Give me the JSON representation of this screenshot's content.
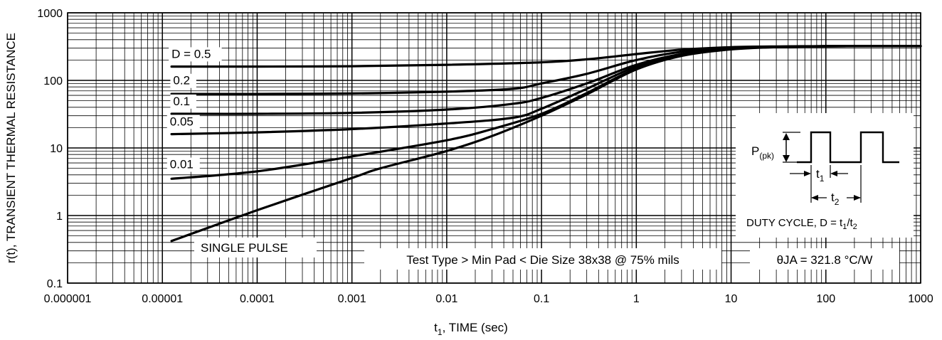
{
  "chart_data": {
    "type": "line",
    "xlabel_main": "t",
    "xlabel_sub": "1",
    "xlabel_rest": ", TIME (sec)",
    "ylabel": "r(t), TRANSIENT THERMAL RESISTANCE",
    "xscale": "log",
    "yscale": "log",
    "xlim": [
      1e-06,
      1000
    ],
    "ylim": [
      0.1,
      1000
    ],
    "grid": true,
    "x_ticks": [
      {
        "v": 1e-06,
        "label": "0.000001"
      },
      {
        "v": 1e-05,
        "label": "0.00001"
      },
      {
        "v": 0.0001,
        "label": "0.0001"
      },
      {
        "v": 0.001,
        "label": "0.001"
      },
      {
        "v": 0.01,
        "label": "0.01"
      },
      {
        "v": 0.1,
        "label": "0.1"
      },
      {
        "v": 1,
        "label": "1"
      },
      {
        "v": 10,
        "label": "10"
      },
      {
        "v": 100,
        "label": "100"
      },
      {
        "v": 1000,
        "label": "1000"
      }
    ],
    "y_ticks": [
      {
        "v": 0.1,
        "label": "0.1"
      },
      {
        "v": 1,
        "label": "1"
      },
      {
        "v": 10,
        "label": "10"
      },
      {
        "v": 100,
        "label": "100"
      },
      {
        "v": 1000,
        "label": "1000"
      }
    ],
    "series": [
      {
        "name": "D = 0.5",
        "x": [
          1.25e-05,
          0.0001,
          0.001,
          0.01,
          0.1,
          0.3,
          1,
          3,
          10,
          30,
          100,
          300,
          1000
        ],
        "y": [
          160,
          160,
          162,
          170,
          185,
          205,
          245,
          285,
          310,
          318,
          321,
          321.5,
          321.8
        ]
      },
      {
        "name": "0.2",
        "x": [
          1.25e-05,
          0.0001,
          0.001,
          0.01,
          0.05,
          0.1,
          0.3,
          1,
          3,
          10,
          30,
          100,
          1000
        ],
        "y": [
          63,
          63,
          64,
          68,
          75,
          90,
          125,
          200,
          265,
          300,
          315,
          320,
          321.8
        ]
      },
      {
        "name": "0.1",
        "x": [
          1.25e-05,
          0.0001,
          0.001,
          0.01,
          0.05,
          0.1,
          0.3,
          1,
          3,
          10,
          30,
          100,
          1000
        ],
        "y": [
          32,
          32,
          33,
          37,
          45,
          55,
          90,
          170,
          245,
          295,
          313,
          320,
          321.8
        ]
      },
      {
        "name": "0.05",
        "x": [
          1.25e-05,
          0.0001,
          0.001,
          0.01,
          0.05,
          0.1,
          0.3,
          1,
          3,
          10,
          30,
          100,
          1000
        ],
        "y": [
          16,
          17,
          19,
          23,
          28,
          38,
          75,
          160,
          240,
          292,
          312,
          320,
          321.8
        ]
      },
      {
        "name": "0.01",
        "x": [
          1.25e-05,
          0.0001,
          0.001,
          0.01,
          0.03,
          0.1,
          0.3,
          1,
          3,
          10,
          30,
          100,
          1000
        ],
        "y": [
          3.5,
          4.5,
          7.5,
          13,
          19,
          32,
          65,
          150,
          235,
          290,
          311,
          320,
          321.8
        ]
      },
      {
        "name": "SINGLE PULSE",
        "x": [
          1.25e-05,
          0.0001,
          0.001,
          0.002,
          0.01,
          0.03,
          0.1,
          0.3,
          1,
          3,
          10,
          30,
          100,
          1000
        ],
        "y": [
          0.42,
          1.2,
          3.6,
          5,
          9,
          15,
          30,
          62,
          145,
          230,
          288,
          310,
          320,
          321.8
        ]
      }
    ],
    "series_labels": [
      {
        "text": "D = 0.5",
        "x": 1.25e-05,
        "y": 215
      },
      {
        "text": "0.2",
        "x": 1.3e-05,
        "y": 87
      },
      {
        "text": "0.1",
        "x": 1.3e-05,
        "y": 43
      },
      {
        "text": "0.05",
        "x": 1.2e-05,
        "y": 21.5
      },
      {
        "text": "0.01",
        "x": 1.2e-05,
        "y": 5.0
      }
    ],
    "single_pulse_label": "SINGLE PULSE",
    "annotations": {
      "test_type": "Test Type > Min Pad < Die Size 38x38 @ 75% mils",
      "theta": "θJA = 321.8 °C/W"
    },
    "inset": {
      "ppk_main": "P",
      "ppk_sub": "(pk)",
      "t1_main": "t",
      "t1_sub": "1",
      "t2_main": "t",
      "t2_sub": "2",
      "duty_prefix": "DUTY CYCLE, D = t",
      "duty_sub1": "1",
      "duty_mid": "/t",
      "duty_sub2": "2"
    }
  }
}
